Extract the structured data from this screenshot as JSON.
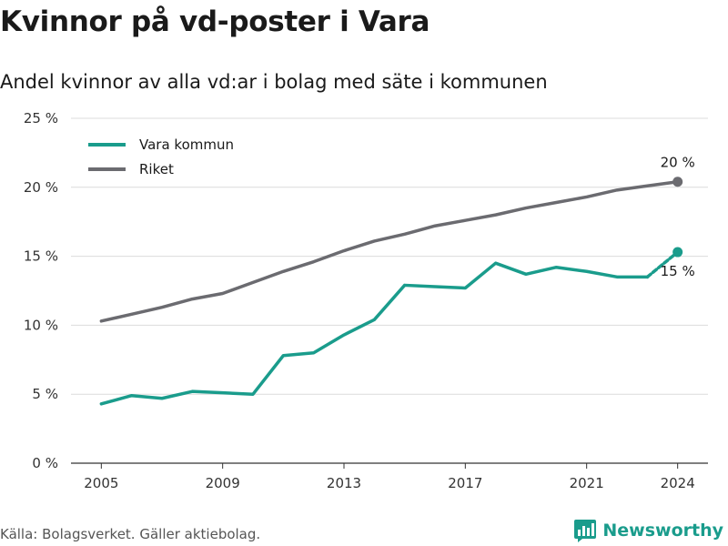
{
  "title": "Kvinnor på vd-poster i Vara",
  "subtitle": "Andel kvinnor av alla vd:ar i bolag med säte i kommunen",
  "source": "Källa: Bolagsverket. Gäller aktiebolag.",
  "brand": "Newsworthy",
  "brand_icon": "bar-chart-icon",
  "chart_data": {
    "type": "line",
    "x": [
      2005,
      2006,
      2007,
      2008,
      2009,
      2010,
      2011,
      2012,
      2013,
      2014,
      2015,
      2016,
      2017,
      2018,
      2019,
      2020,
      2021,
      2022,
      2023,
      2024
    ],
    "x_ticks": [
      "2005",
      "2009",
      "2013",
      "2017",
      "2021",
      "2024"
    ],
    "y_ticks": [
      "0 %",
      "5 %",
      "10 %",
      "15 %",
      "20 %",
      "25 %"
    ],
    "ylim": [
      0,
      25
    ],
    "grid": true,
    "legend_position": "top-left",
    "series": [
      {
        "name": "Vara kommun",
        "color": "#1a9c8c",
        "values": [
          4.3,
          4.9,
          4.7,
          5.2,
          5.1,
          5.0,
          7.8,
          8.0,
          9.3,
          10.4,
          12.9,
          12.8,
          12.7,
          14.5,
          13.7,
          14.2,
          13.9,
          13.5,
          13.5,
          15.3
        ],
        "end_label": "15 %"
      },
      {
        "name": "Riket",
        "color": "#6b6b70",
        "values": [
          10.3,
          10.8,
          11.3,
          11.9,
          12.3,
          13.1,
          13.9,
          14.6,
          15.4,
          16.1,
          16.6,
          17.2,
          17.6,
          18.0,
          18.5,
          18.9,
          19.3,
          19.8,
          20.1,
          20.4
        ],
        "end_label": "20 %"
      }
    ]
  }
}
